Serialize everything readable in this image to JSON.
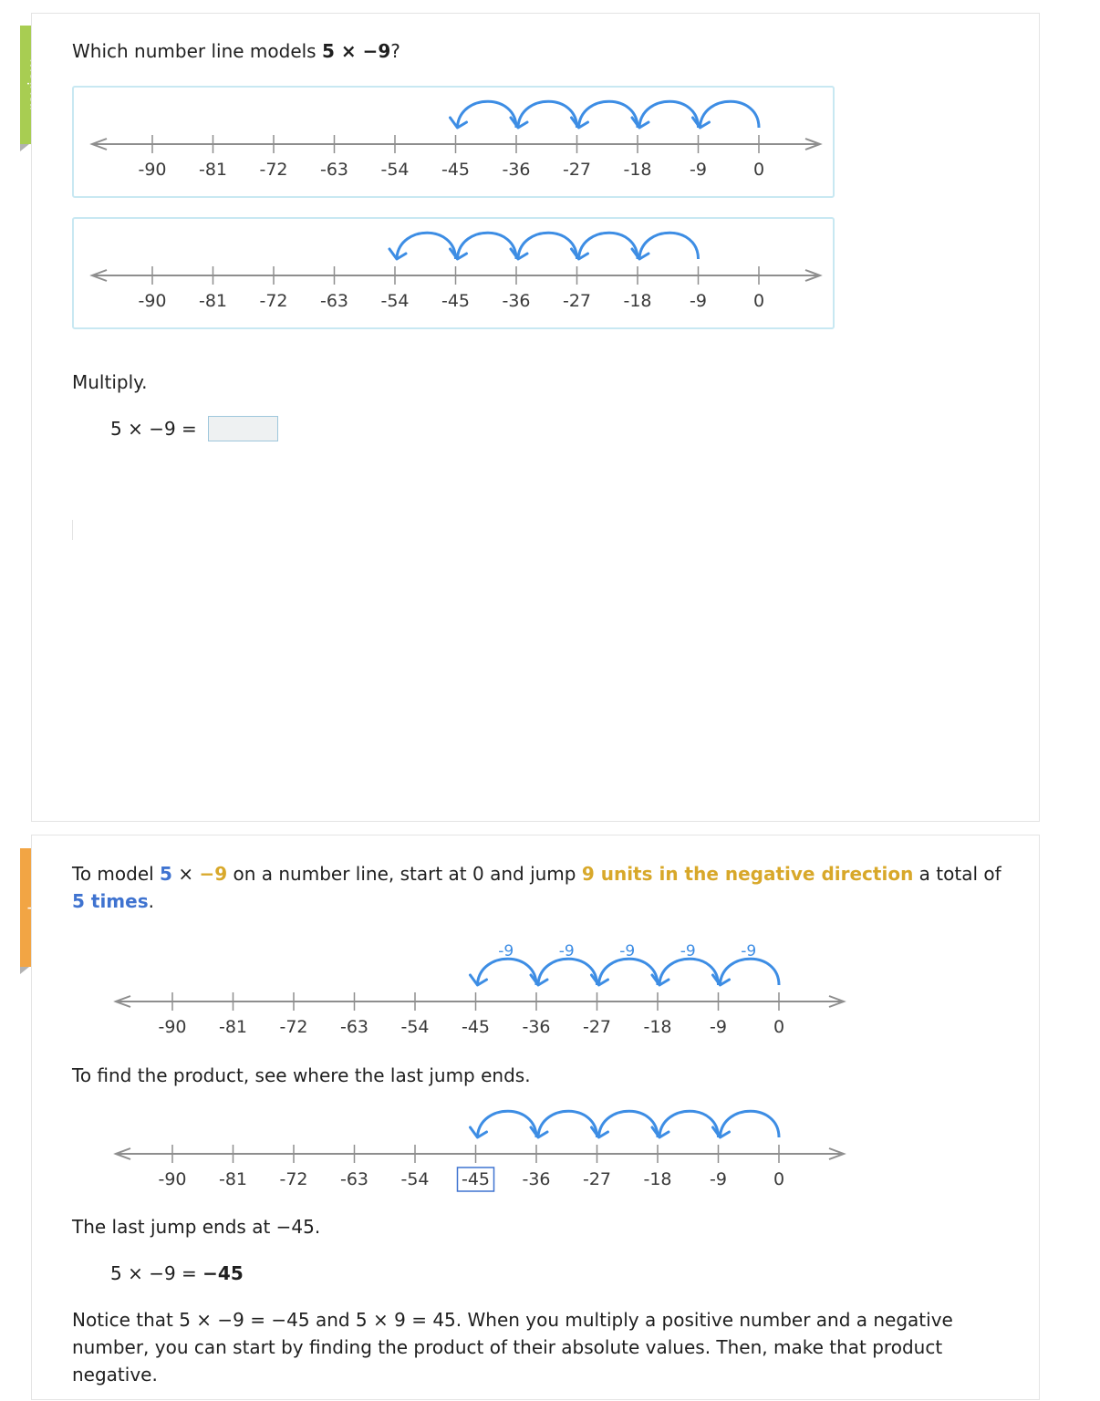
{
  "tabs": {
    "review_label": "review",
    "solve_label": "solve"
  },
  "review": {
    "question_prefix": "Which number line models ",
    "question_expr": "5 × −9",
    "question_suffix": "?",
    "choices": [
      {
        "ticks": [
          -90,
          -81,
          -72,
          -63,
          -54,
          -45,
          -36,
          -27,
          -18,
          -9,
          0
        ],
        "jumps": [
          [
            0,
            -9
          ],
          [
            -9,
            -18
          ],
          [
            -18,
            -27
          ],
          [
            -27,
            -36
          ],
          [
            -36,
            -45
          ]
        ]
      },
      {
        "ticks": [
          -90,
          -81,
          -72,
          -63,
          -54,
          -45,
          -36,
          -27,
          -18,
          -9,
          0
        ],
        "jumps": [
          [
            -9,
            -18
          ],
          [
            -18,
            -27
          ],
          [
            -27,
            -36
          ],
          [
            -36,
            -45
          ],
          [
            -45,
            -54
          ]
        ]
      }
    ],
    "multiply_label": "Multiply.",
    "equation_text": "5 × −9 =",
    "answer_value": ""
  },
  "solve": {
    "intro": {
      "p1": "To model ",
      "n1": "5",
      "p2": " × ",
      "n2": "−9",
      "p3": " on a number line, start at 0 and jump ",
      "dir": "9 units in the negative direction",
      "p4": " a total of ",
      "times": "5 times",
      "p5": "."
    },
    "number_line_1": {
      "ticks": [
        -90,
        -81,
        -72,
        -63,
        -54,
        -45,
        -36,
        -27,
        -18,
        -9,
        0
      ],
      "jumps": [
        [
          0,
          -9
        ],
        [
          -9,
          -18
        ],
        [
          -18,
          -27
        ],
        [
          -27,
          -36
        ],
        [
          -36,
          -45
        ]
      ],
      "jump_labels": [
        "-9",
        "-9",
        "-9",
        "-9",
        "-9"
      ]
    },
    "find_product": "To find the product, see where the last jump ends.",
    "number_line_2": {
      "ticks": [
        -90,
        -81,
        -72,
        -63,
        -54,
        -45,
        -36,
        -27,
        -18,
        -9,
        0
      ],
      "jumps": [
        [
          0,
          -9
        ],
        [
          -9,
          -18
        ],
        [
          -18,
          -27
        ],
        [
          -27,
          -36
        ],
        [
          -36,
          -45
        ]
      ],
      "highlight": -45
    },
    "last_jump": "The last jump ends at −45.",
    "result_prefix": "5 × −9 = ",
    "result_value": "−45",
    "notice": "Notice that 5 × −9 = −45 and 5 × 9 = 45. When you multiply a positive number and a negative number, you can start by finding the product of their absolute values. Then, make that product negative."
  },
  "colors": {
    "review_tab": "#a8cd52",
    "solve_tab": "#f2a544",
    "jump_arrow": "#3d8de4",
    "emphasis_blue": "#3f73d0",
    "emphasis_gold": "#d8a82a",
    "choice_border": "#c8e8f2"
  }
}
